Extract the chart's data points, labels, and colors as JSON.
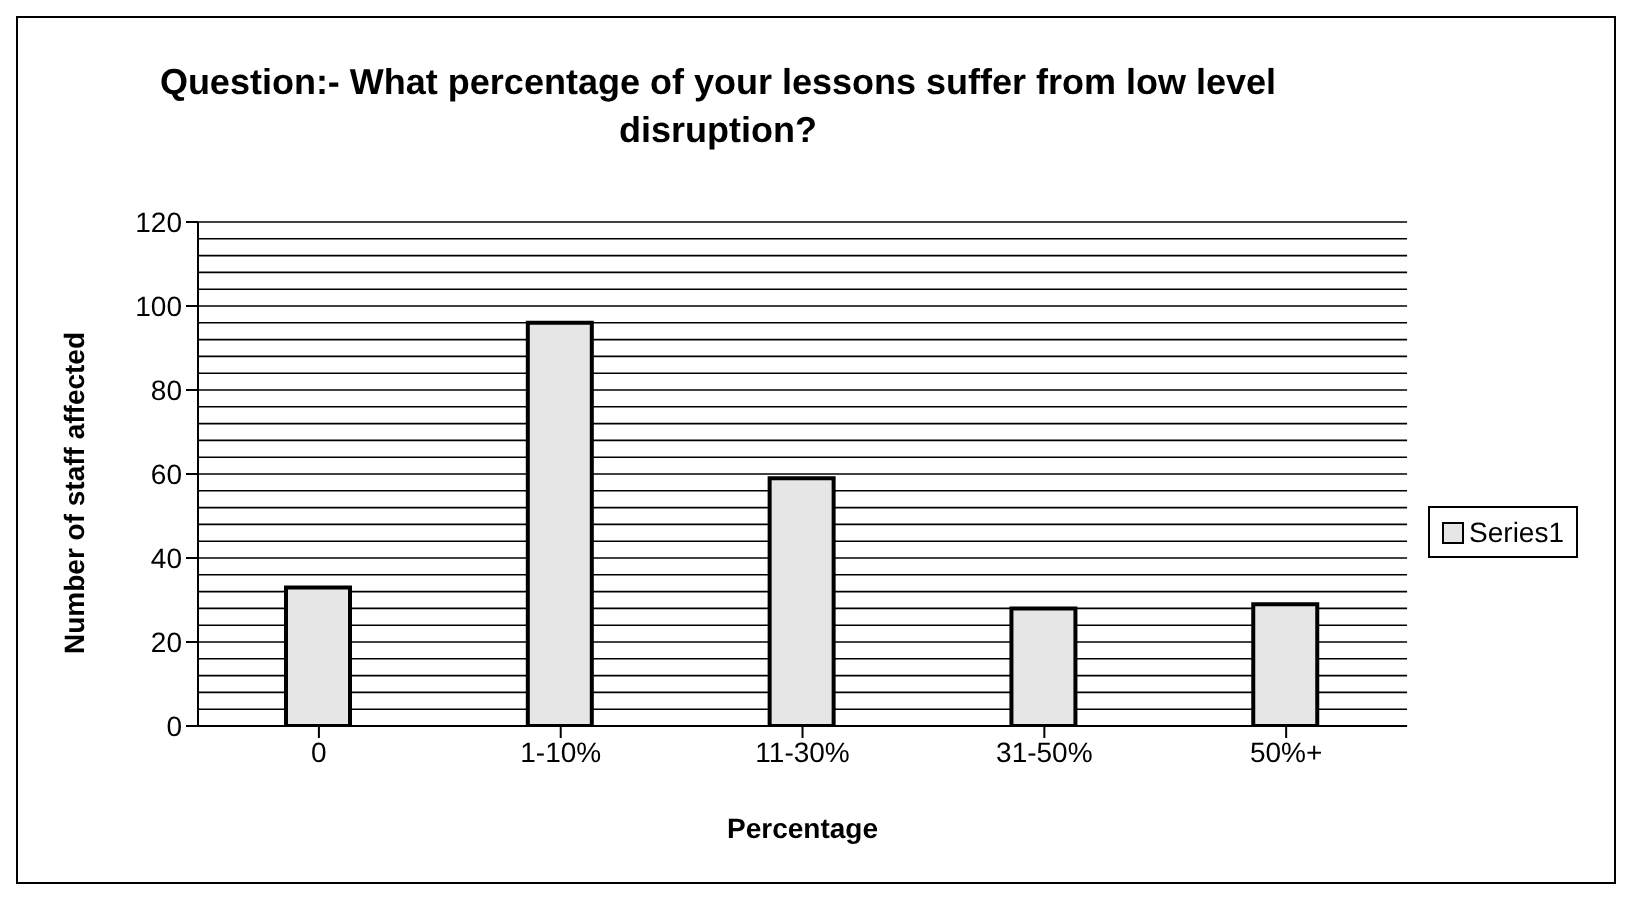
{
  "chart_data": {
    "type": "bar",
    "title": "Question:- What percentage of your lessons suffer from low level disruption?",
    "xlabel": "Percentage",
    "ylabel": "Number of staff affected",
    "categories": [
      "0",
      "1-10%",
      "11-30%",
      "31-50%",
      "50%+"
    ],
    "series": [
      {
        "name": "Series1",
        "color": "#e6e6e6",
        "values": [
          33,
          96,
          59,
          28,
          29
        ]
      }
    ],
    "ylim": [
      0,
      120
    ],
    "yticks": [
      0,
      {
        "value": 4,
        "label": null
      },
      {
        "value": 8,
        "label": null
      },
      {
        "value": 12,
        "label": null
      },
      {
        "value": 16,
        "label": null
      },
      20,
      {
        "value": 24,
        "label": null
      },
      {
        "value": 28,
        "label": null
      },
      {
        "value": 32,
        "label": null
      },
      {
        "value": 36,
        "label": null
      },
      40,
      {
        "value": 44,
        "label": null
      },
      {
        "value": 48,
        "label": null
      },
      {
        "value": 52,
        "label": null
      },
      {
        "value": 56,
        "label": null
      },
      60,
      {
        "value": 64,
        "label": null
      },
      {
        "value": 68,
        "label": null
      },
      {
        "value": 72,
        "label": null
      },
      {
        "value": 76,
        "label": null
      },
      80,
      {
        "value": 84,
        "label": null
      },
      {
        "value": 88,
        "label": null
      },
      {
        "value": 92,
        "label": null
      },
      {
        "value": 96,
        "label": null
      },
      100,
      {
        "value": 104,
        "label": null
      },
      {
        "value": 108,
        "label": null
      },
      {
        "value": 112,
        "label": null
      },
      {
        "value": 116,
        "label": null
      },
      120
    ],
    "grid": "y",
    "legend": "right"
  }
}
